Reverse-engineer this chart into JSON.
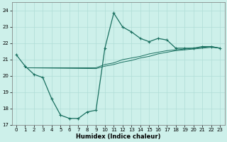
{
  "xlabel": "Humidex (Indice chaleur)",
  "background_color": "#cdf0ea",
  "grid_color": "#b0ddd6",
  "line_color": "#1a7060",
  "xlim": [
    -0.5,
    23.5
  ],
  "ylim": [
    17.0,
    24.5
  ],
  "xticks": [
    0,
    1,
    2,
    3,
    4,
    5,
    6,
    7,
    8,
    9,
    10,
    11,
    12,
    13,
    14,
    15,
    16,
    17,
    18,
    19,
    20,
    21,
    22,
    23
  ],
  "yticks": [
    17,
    18,
    19,
    20,
    21,
    22,
    23,
    24
  ],
  "lower_curve_x": [
    0,
    1,
    2,
    3,
    4,
    5,
    6,
    7,
    8,
    9
  ],
  "lower_curve_y": [
    21.3,
    20.6,
    20.1,
    19.9,
    18.6,
    17.6,
    17.4,
    17.4,
    17.8,
    17.9
  ],
  "upper_curve_x": [
    10,
    11,
    12,
    13,
    14,
    15,
    16,
    17,
    18,
    19,
    20,
    21,
    22,
    23
  ],
  "upper_curve_y": [
    21.7,
    23.85,
    23.0,
    22.7,
    22.3,
    22.1,
    22.3,
    22.2,
    21.7,
    21.7,
    21.7,
    21.8,
    21.8,
    21.7
  ],
  "linear_x": [
    1,
    9,
    10,
    11,
    12,
    13,
    14,
    15,
    16,
    17,
    18,
    19,
    20,
    21,
    22,
    23
  ],
  "linear_y": [
    20.5,
    20.5,
    20.7,
    20.8,
    21.0,
    21.1,
    21.2,
    21.35,
    21.45,
    21.55,
    21.6,
    21.65,
    21.7,
    21.75,
    21.8,
    21.7
  ],
  "linear2_x": [
    1,
    9,
    10,
    11,
    12,
    13,
    14,
    15,
    16,
    17,
    18,
    19,
    20,
    21,
    22,
    23
  ],
  "linear2_y": [
    20.5,
    20.45,
    20.6,
    20.7,
    20.85,
    20.95,
    21.1,
    21.2,
    21.35,
    21.45,
    21.55,
    21.6,
    21.65,
    21.7,
    21.75,
    21.7
  ]
}
